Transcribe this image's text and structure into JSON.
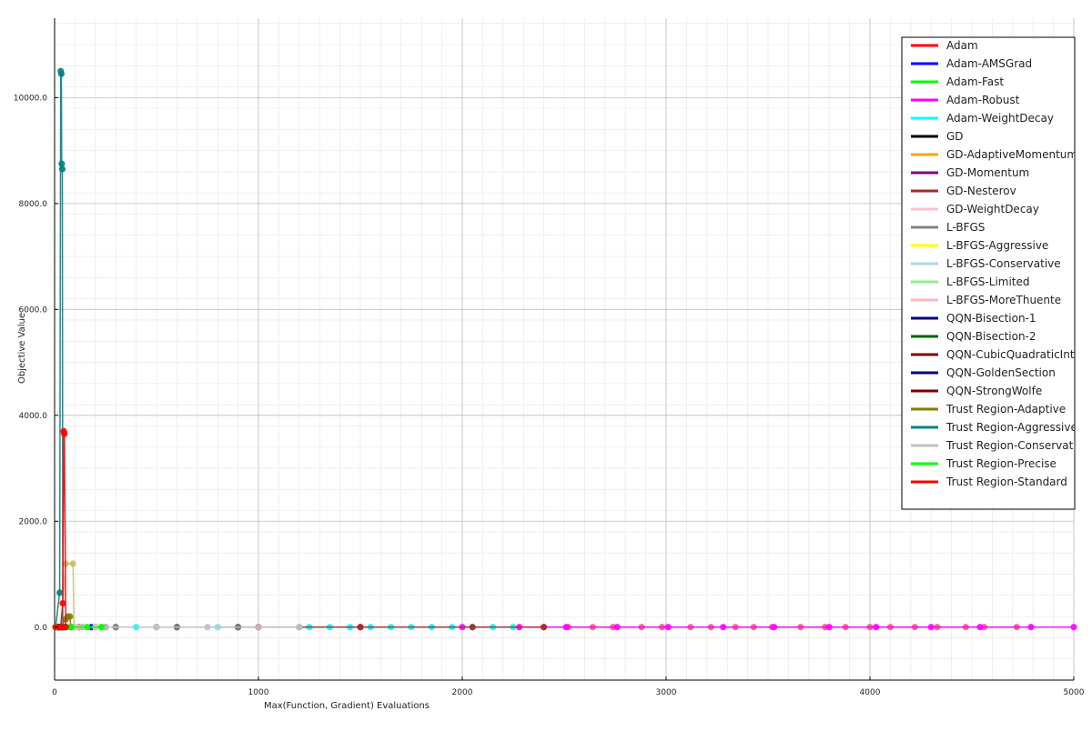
{
  "chart_data": {
    "type": "line",
    "title": "",
    "xlabel": "Max(Function, Gradient) Evaluations",
    "ylabel": "Objective Value",
    "xlim": [
      0,
      5000
    ],
    "ylim": [
      -1000,
      11500
    ],
    "x_ticks": [
      0,
      1000,
      2000,
      3000,
      4000,
      5000
    ],
    "y_ticks": [
      0,
      2000,
      4000,
      6000,
      8000,
      10000
    ],
    "x_tick_labels": [
      "0",
      "1000",
      "2000",
      "3000",
      "4000",
      "5000"
    ],
    "y_tick_labels": [
      "0.0",
      "2000.0",
      "4000.0",
      "6000.0",
      "8000.0",
      "10000.0"
    ],
    "grid": true,
    "legend_position": "top-right",
    "series": [
      {
        "name": "Adam",
        "color": "#ff0000",
        "points": [
          [
            5,
            0
          ],
          [
            60,
            0
          ],
          [
            120,
            0
          ],
          [
            200,
            0
          ]
        ]
      },
      {
        "name": "Adam-AMSGrad",
        "color": "#0000ff",
        "points": [
          [
            5,
            0
          ],
          [
            80,
            0
          ],
          [
            180,
            0
          ]
        ]
      },
      {
        "name": "Adam-Fast",
        "color": "#00ff00",
        "points": [
          [
            5,
            0
          ],
          [
            60,
            0
          ],
          [
            140,
            0
          ],
          [
            230,
            0
          ]
        ]
      },
      {
        "name": "Adam-Robust",
        "color": "#ff00ff",
        "points": [
          [
            20,
            0
          ],
          [
            500,
            0
          ],
          [
            1000,
            0
          ],
          [
            1500,
            0
          ],
          [
            2000,
            0
          ],
          [
            2280,
            0
          ],
          [
            2510,
            0
          ],
          [
            2760,
            0
          ],
          [
            3010,
            0
          ],
          [
            3280,
            0
          ],
          [
            3530,
            0
          ],
          [
            3800,
            0
          ],
          [
            4030,
            0
          ],
          [
            4300,
            0
          ],
          [
            4540,
            0
          ],
          [
            4790,
            0
          ],
          [
            5000,
            0
          ]
        ]
      },
      {
        "name": "Adam-WeightDecay",
        "color": "#00ffff",
        "points": [
          [
            10,
            0
          ],
          [
            400,
            0
          ],
          [
            800,
            0
          ],
          [
            1250,
            0
          ],
          [
            1350,
            0
          ],
          [
            1450,
            0
          ],
          [
            1550,
            0
          ],
          [
            1650,
            0
          ],
          [
            1750,
            0
          ],
          [
            1850,
            0
          ],
          [
            1950,
            0
          ],
          [
            2050,
            0
          ],
          [
            2150,
            0
          ],
          [
            2250,
            0
          ]
        ]
      },
      {
        "name": "GD",
        "color": "#000000",
        "points": [
          [
            5,
            0
          ],
          [
            300,
            0
          ],
          [
            600,
            0
          ],
          [
            900,
            0
          ]
        ]
      },
      {
        "name": "GD-AdaptiveMomentum",
        "color": "#ffa500",
        "points": [
          [
            5,
            0
          ],
          [
            100,
            0
          ],
          [
            200,
            0
          ]
        ]
      },
      {
        "name": "GD-Momentum",
        "color": "#800080",
        "points": [
          [
            5,
            0
          ],
          [
            120,
            0
          ],
          [
            250,
            0
          ]
        ]
      },
      {
        "name": "GD-Nesterov",
        "color": "#a52a2a",
        "points": [
          [
            5,
            0
          ],
          [
            500,
            0
          ],
          [
            1000,
            0
          ],
          [
            1500,
            0
          ],
          [
            2050,
            0
          ],
          [
            2400,
            0
          ]
        ]
      },
      {
        "name": "GD-WeightDecay",
        "color": "#ffc0cb",
        "points": [
          [
            5,
            0
          ],
          [
            150,
            0
          ],
          [
            300,
            0
          ]
        ]
      },
      {
        "name": "L-BFGS",
        "color": "#808080",
        "points": [
          [
            5,
            0
          ],
          [
            300,
            0
          ],
          [
            600,
            0
          ],
          [
            900,
            0
          ],
          [
            1200,
            0
          ]
        ]
      },
      {
        "name": "L-BFGS-Aggressive",
        "color": "#ffff00",
        "points": [
          [
            5,
            0
          ],
          [
            20,
            0
          ],
          [
            40,
            0
          ]
        ]
      },
      {
        "name": "L-BFGS-Conservative",
        "color": "#add8e6",
        "points": [
          [
            5,
            0
          ],
          [
            200,
            0
          ],
          [
            500,
            0
          ],
          [
            800,
            0
          ]
        ]
      },
      {
        "name": "L-BFGS-Limited",
        "color": "#90ee90",
        "points": [
          [
            5,
            0
          ],
          [
            50,
            0
          ],
          [
            100,
            0
          ]
        ]
      },
      {
        "name": "L-BFGS-MoreThuente",
        "color": "#ffb6c1",
        "points": [
          [
            5,
            0
          ],
          [
            60,
            0
          ],
          [
            120,
            0
          ]
        ]
      },
      {
        "name": "QQN-Bisection-1",
        "color": "#000080",
        "points": [
          [
            5,
            0
          ],
          [
            20,
            0
          ],
          [
            35,
            0
          ]
        ]
      },
      {
        "name": "QQN-Bisection-2",
        "color": "#006400",
        "points": [
          [
            5,
            0
          ],
          [
            20,
            0
          ],
          [
            35,
            0
          ]
        ]
      },
      {
        "name": "QQN-CubicQuadraticInterpolation",
        "color": "#800000",
        "points": [
          [
            5,
            0
          ],
          [
            20,
            0
          ],
          [
            35,
            0
          ]
        ]
      },
      {
        "name": "QQN-GoldenSection",
        "color": "#000080",
        "points": [
          [
            5,
            0
          ],
          [
            25,
            0
          ],
          [
            45,
            0
          ]
        ]
      },
      {
        "name": "QQN-StrongWolfe",
        "color": "#800000",
        "points": [
          [
            5,
            0
          ],
          [
            20,
            0
          ],
          [
            40,
            0
          ]
        ]
      },
      {
        "name": "Trust Region-Adaptive",
        "color": "#808000",
        "points": [
          [
            5,
            0
          ],
          [
            30,
            0
          ],
          [
            55,
            150
          ],
          [
            65,
            200
          ],
          [
            75,
            200
          ],
          [
            80,
            0
          ]
        ]
      },
      {
        "name": "Trust Region-Aggressive",
        "color": "#008080",
        "points": [
          [
            5,
            0
          ],
          [
            25,
            650
          ],
          [
            30,
            10500
          ],
          [
            33,
            10450
          ],
          [
            35,
            8750
          ],
          [
            38,
            8650
          ],
          [
            40,
            0
          ]
        ]
      },
      {
        "name": "Trust Region-Conservative",
        "color": "#c0c0c0",
        "points": [
          [
            5,
            0
          ],
          [
            250,
            0
          ],
          [
            500,
            0
          ],
          [
            750,
            0
          ],
          [
            1000,
            0
          ],
          [
            1200,
            0
          ]
        ]
      },
      {
        "name": "Trust Region-Precise",
        "color": "#00ff00",
        "points": [
          [
            5,
            0
          ],
          [
            80,
            0
          ],
          [
            160,
            0
          ],
          [
            230,
            0
          ]
        ]
      },
      {
        "name": "Trust Region-Standard",
        "color": "#ff0000",
        "points": [
          [
            5,
            0
          ],
          [
            30,
            0
          ],
          [
            40,
            450
          ],
          [
            45,
            3700
          ],
          [
            48,
            3650
          ],
          [
            55,
            0
          ]
        ]
      }
    ],
    "extra_faint_series": [
      {
        "color": "#b8b860",
        "points": [
          [
            30,
            0
          ],
          [
            55,
            1200
          ],
          [
            90,
            1200
          ],
          [
            95,
            0
          ]
        ]
      },
      {
        "color": "#ff3366",
        "points": [
          [
            2400,
            0
          ],
          [
            2520,
            0
          ],
          [
            2640,
            0
          ],
          [
            2740,
            0
          ],
          [
            2880,
            0
          ],
          [
            2980,
            0
          ],
          [
            3120,
            0
          ],
          [
            3220,
            0
          ],
          [
            3340,
            0
          ],
          [
            3430,
            0
          ],
          [
            3520,
            0
          ],
          [
            3660,
            0
          ],
          [
            3780,
            0
          ],
          [
            3880,
            0
          ],
          [
            4000,
            0
          ],
          [
            4100,
            0
          ],
          [
            4220,
            0
          ],
          [
            4330,
            0
          ],
          [
            4470,
            0
          ],
          [
            4560,
            0
          ],
          [
            4720,
            0
          ]
        ]
      }
    ]
  }
}
